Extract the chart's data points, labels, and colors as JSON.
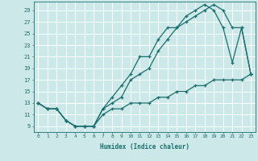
{
  "xlabel": "Humidex (Indice chaleur)",
  "bg_color": "#cce8e8",
  "grid_color": "#ffffff",
  "line_color": "#1a6e6e",
  "xlim": [
    -0.5,
    23.5
  ],
  "ylim": [
    8.0,
    30.5
  ],
  "xticks": [
    0,
    1,
    2,
    3,
    4,
    5,
    6,
    7,
    8,
    9,
    10,
    11,
    12,
    13,
    14,
    15,
    16,
    17,
    18,
    19,
    20,
    21,
    22,
    23
  ],
  "yticks": [
    9,
    11,
    13,
    15,
    17,
    19,
    21,
    23,
    25,
    27,
    29
  ],
  "curve1_x": [
    0,
    1,
    2,
    3,
    4,
    5,
    6,
    7,
    8,
    9,
    10,
    11,
    12,
    13,
    14,
    15,
    16,
    17,
    18,
    19,
    20,
    21,
    22,
    23
  ],
  "curve1_y": [
    13,
    12,
    12,
    10,
    9,
    9,
    9,
    12,
    14,
    16,
    18,
    21,
    21,
    24,
    26,
    26,
    28,
    29,
    30,
    29,
    26,
    20,
    26,
    18
  ],
  "curve2_x": [
    0,
    1,
    2,
    3,
    4,
    5,
    6,
    7,
    8,
    9,
    10,
    11,
    12,
    13,
    14,
    15,
    16,
    17,
    18,
    19,
    20,
    21,
    22,
    23
  ],
  "curve2_y": [
    13,
    12,
    12,
    10,
    9,
    9,
    9,
    12,
    13,
    14,
    17,
    18,
    19,
    22,
    24,
    26,
    27,
    28,
    29,
    30,
    29,
    26,
    26,
    18
  ],
  "curve3_x": [
    0,
    1,
    2,
    3,
    4,
    5,
    6,
    7,
    8,
    9,
    10,
    11,
    12,
    13,
    14,
    15,
    16,
    17,
    18,
    19,
    20,
    21,
    22,
    23
  ],
  "curve3_y": [
    13,
    12,
    12,
    10,
    9,
    9,
    9,
    11,
    12,
    12,
    13,
    13,
    13,
    14,
    14,
    15,
    15,
    16,
    16,
    17,
    17,
    17,
    17,
    18
  ]
}
